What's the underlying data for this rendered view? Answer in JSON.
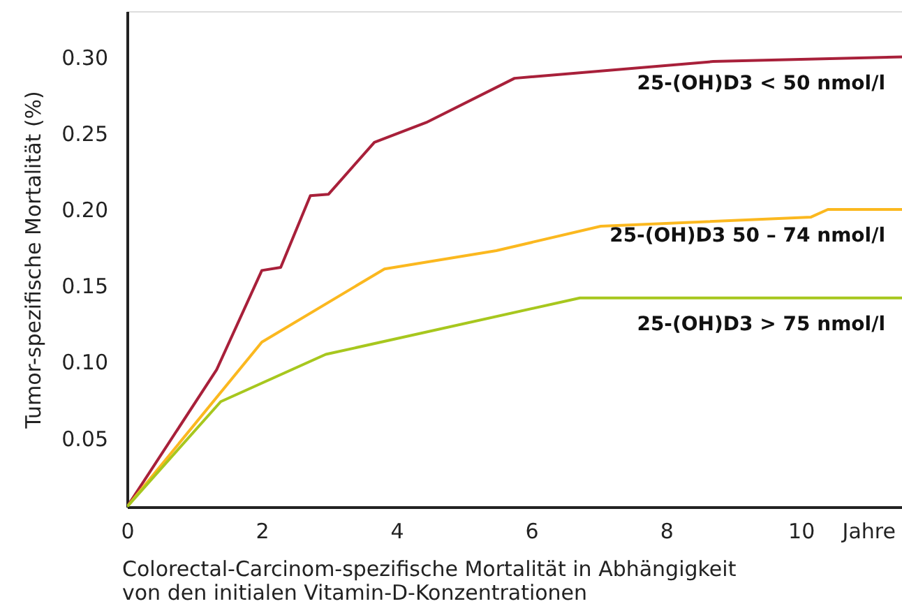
{
  "chart_data": {
    "type": "line",
    "xlabel": "Colorectal-Carcinom-spezifische Mortalität in Abhängigkeit\nvon den initialen Vitamin-D-Konzentrationen",
    "ylabel": "Tumor-spezifische Mortalität (%)",
    "xlim": [
      0,
      11.5
    ],
    "ylim": [
      0.005,
      0.33
    ],
    "xticks": [
      0,
      2,
      4,
      6,
      8,
      10,
      {
        "value": 11,
        "label": "Jahre"
      }
    ],
    "yticks": [
      0.05,
      {
        "value": 0.1,
        "label": "0.10"
      },
      0.15,
      {
        "value": 0.2,
        "label": "0.20"
      },
      0.25,
      {
        "value": 0.3,
        "label": "0.30"
      }
    ],
    "grid": false,
    "legend": false,
    "marker": "none",
    "line_style": "solid",
    "series": [
      {
        "name": "25-(OH)D3 < 50 nmol/l",
        "color": "#a8203a",
        "x": [
          0,
          1.33,
          2.0,
          2.28,
          2.72,
          2.99,
          3.67,
          4.44,
          5.75,
          8.7,
          11.5
        ],
        "values": [
          0.005,
          0.095,
          0.16,
          0.162,
          0.209,
          0.21,
          0.244,
          0.257,
          0.286,
          0.297,
          0.3
        ]
      },
      {
        "name": "25-(OH)D3 50 – 74 nmol/l",
        "color": "#fbb81f",
        "x": [
          0,
          2.0,
          3.82,
          5.48,
          7.03,
          10.15,
          10.4,
          11.5
        ],
        "values": [
          0.005,
          0.113,
          0.161,
          0.173,
          0.189,
          0.195,
          0.2,
          0.2
        ]
      },
      {
        "name": "25-(OH)D3 > 75 nmol/l",
        "color": "#a7c71e",
        "x": [
          0,
          1.39,
          2.95,
          6.72,
          11.5
        ],
        "values": [
          0.005,
          0.074,
          0.105,
          0.142,
          0.142
        ]
      }
    ]
  }
}
